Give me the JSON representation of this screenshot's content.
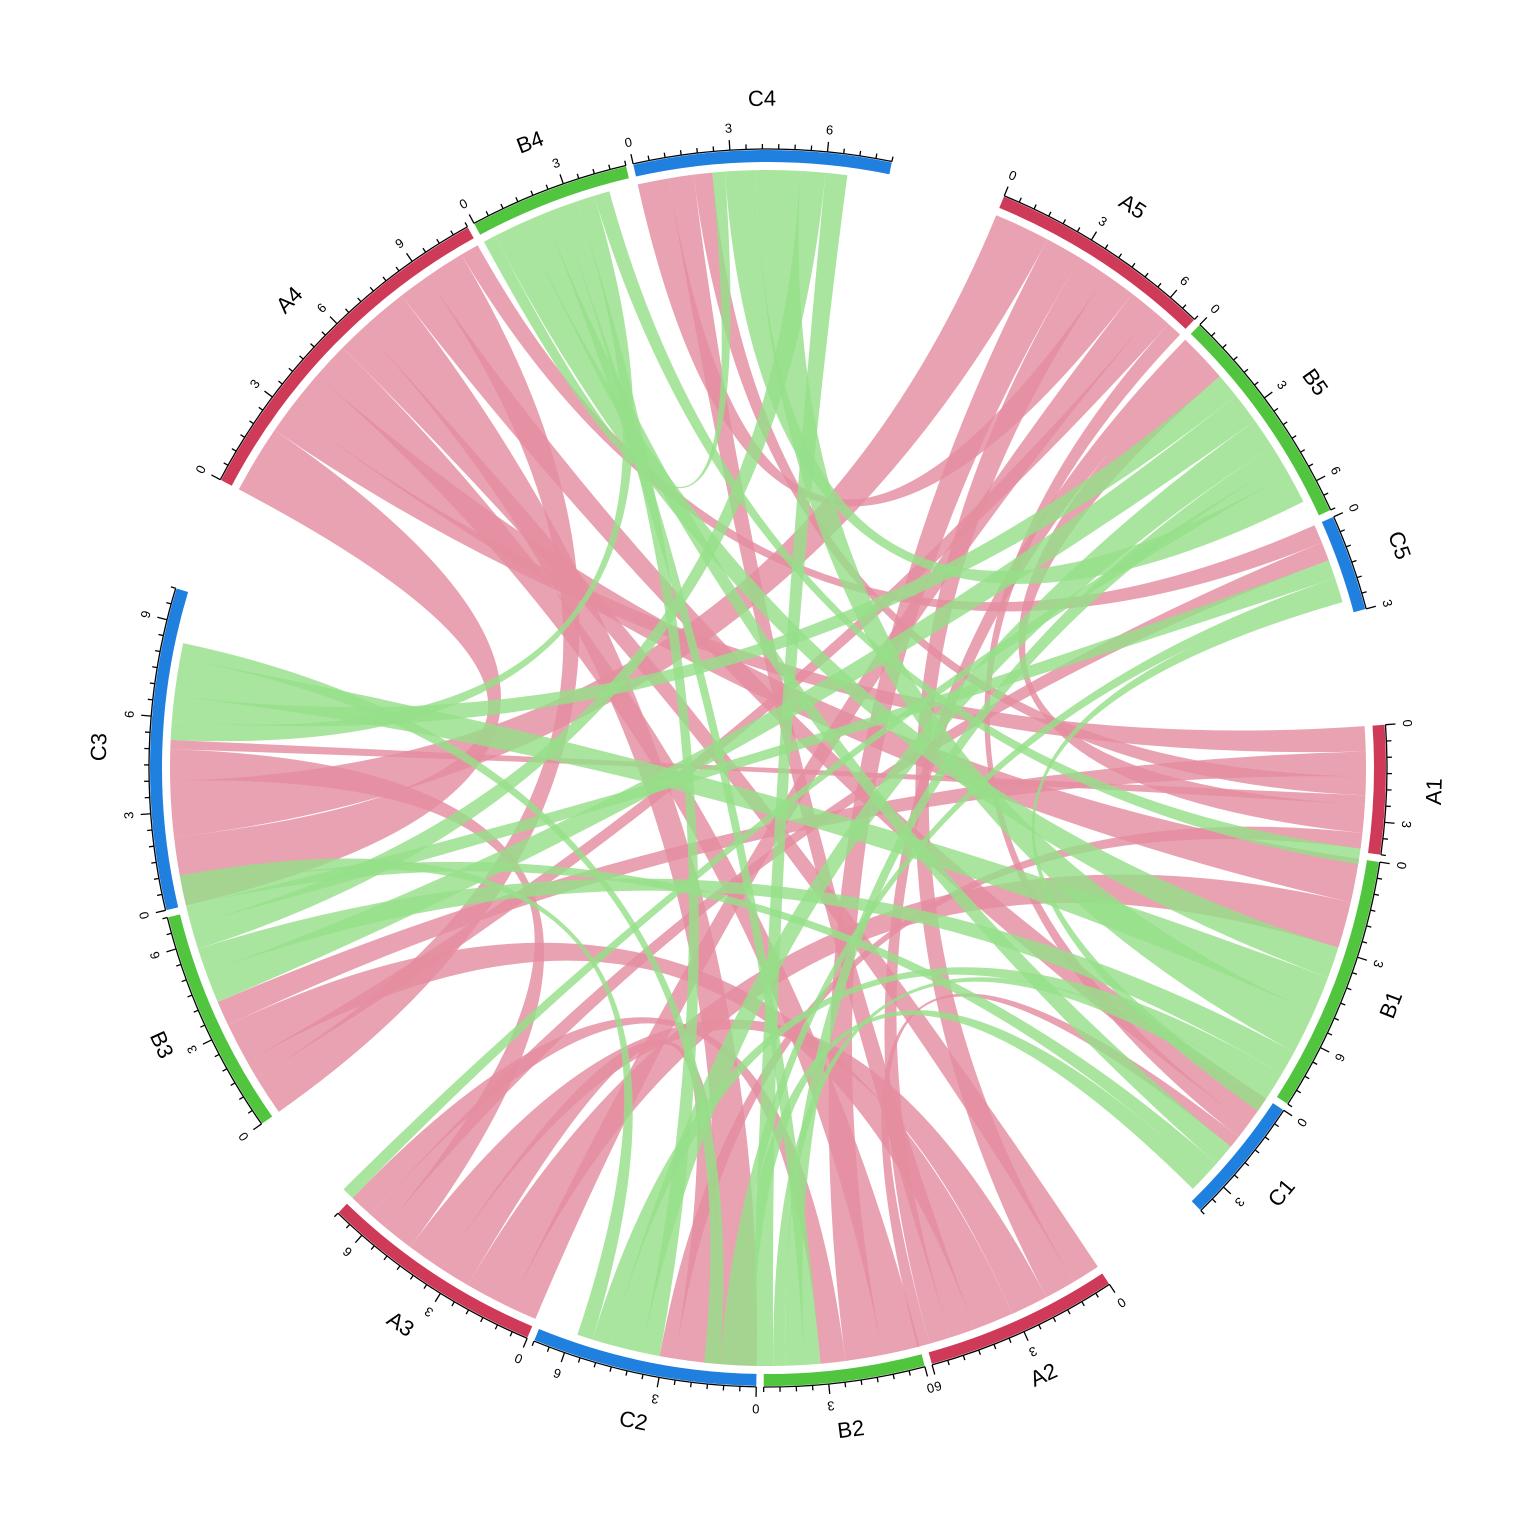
{
  "chart_data": {
    "type": "chord",
    "title": "",
    "colors": {
      "A": "#d03a59",
      "B": "#52c53f",
      "C": "#2080e0",
      "link_A": "#e48ea0",
      "link_B": "#96df8a"
    },
    "sectors": [
      {
        "name": "A1",
        "total": 4,
        "color_group": "A",
        "tick_labels": [
          "0",
          "3"
        ]
      },
      {
        "name": "B1",
        "total": 8,
        "color_group": "B",
        "tick_labels": [
          "0",
          "3",
          "6"
        ]
      },
      {
        "name": "C1",
        "total": 4,
        "color_group": "C",
        "tick_labels": [
          "0",
          "3"
        ]
      },
      {
        "name": "A2",
        "total": 6,
        "color_group": "A",
        "tick_labels": [
          "0",
          "3",
          "6"
        ]
      },
      {
        "name": "B2",
        "total": 5,
        "color_group": "B",
        "tick_labels": [
          "0",
          "3"
        ]
      },
      {
        "name": "C2",
        "total": 7,
        "color_group": "C",
        "tick_labels": [
          "0",
          "3",
          "6"
        ]
      },
      {
        "name": "A3",
        "total": 7,
        "color_group": "A",
        "tick_labels": [
          "0",
          "3",
          "6"
        ]
      },
      {
        "name": "B3",
        "total": 7,
        "color_group": "B",
        "tick_labels": [
          "0",
          "3",
          "6"
        ]
      },
      {
        "name": "C3",
        "total": 10,
        "color_group": "C",
        "tick_labels": [
          "0",
          "3",
          "6",
          "9"
        ]
      },
      {
        "name": "A4",
        "total": 11,
        "color_group": "A",
        "tick_labels": [
          "0",
          "3",
          "6",
          "9"
        ]
      },
      {
        "name": "B4",
        "total": 5,
        "color_group": "B",
        "tick_labels": [
          "0",
          "3"
        ]
      },
      {
        "name": "C4",
        "total": 8,
        "color_group": "C",
        "tick_labels": [
          "0",
          "3",
          "6"
        ]
      },
      {
        "name": "A5",
        "total": 7,
        "color_group": "A",
        "tick_labels": [
          "0",
          "3",
          "6"
        ]
      },
      {
        "name": "B5",
        "total": 7,
        "color_group": "B",
        "tick_labels": [
          "0",
          "3",
          "6"
        ]
      },
      {
        "name": "C5",
        "total": 3,
        "color_group": "C",
        "tick_labels": [
          "0",
          "3"
        ]
      }
    ],
    "links": [
      {
        "from": "A4",
        "to": "C3",
        "value": 2.2,
        "group": "A"
      },
      {
        "from": "A4",
        "to": "A1",
        "value": 0.8,
        "group": "A"
      },
      {
        "from": "A4",
        "to": "B1",
        "value": 1.4,
        "group": "A"
      },
      {
        "from": "A4",
        "to": "B2",
        "value": 1.2,
        "group": "A"
      },
      {
        "from": "A4",
        "to": "A2",
        "value": 0.9,
        "group": "A"
      },
      {
        "from": "A4",
        "to": "C2",
        "value": 1.6,
        "group": "A"
      },
      {
        "from": "A4",
        "to": "C1",
        "value": 1.0,
        "group": "A"
      },
      {
        "from": "A4",
        "to": "B3",
        "value": 1.3,
        "group": "A"
      },
      {
        "from": "A4",
        "to": "C5",
        "value": 0.6,
        "group": "A"
      },
      {
        "from": "A5",
        "to": "C3",
        "value": 1.8,
        "group": "A"
      },
      {
        "from": "A5",
        "to": "B2",
        "value": 1.2,
        "group": "A"
      },
      {
        "from": "A5",
        "to": "A2",
        "value": 1.0,
        "group": "A"
      },
      {
        "from": "A5",
        "to": "C4",
        "value": 1.0,
        "group": "A"
      },
      {
        "from": "A5",
        "to": "A3",
        "value": 0.9,
        "group": "A"
      },
      {
        "from": "A5",
        "to": "B3",
        "value": 0.6,
        "group": "A"
      },
      {
        "from": "A5",
        "to": "C1",
        "value": 0.5,
        "group": "A"
      },
      {
        "from": "A3",
        "to": "B1",
        "value": 1.5,
        "group": "A"
      },
      {
        "from": "A3",
        "to": "C2",
        "value": 1.0,
        "group": "A"
      },
      {
        "from": "A3",
        "to": "A2",
        "value": 1.2,
        "group": "A"
      },
      {
        "from": "A3",
        "to": "C3",
        "value": 1.0,
        "group": "A"
      },
      {
        "from": "A3",
        "to": "C5",
        "value": 0.6,
        "group": "A"
      },
      {
        "from": "A3",
        "to": "B2",
        "value": 0.8,
        "group": "A"
      },
      {
        "from": "A2",
        "to": "B3",
        "value": 1.3,
        "group": "A"
      },
      {
        "from": "A2",
        "to": "C4",
        "value": 0.8,
        "group": "A"
      },
      {
        "from": "A2",
        "to": "B5",
        "value": 0.7,
        "group": "A"
      },
      {
        "from": "A2",
        "to": "C1",
        "value": 0.4,
        "group": "A"
      },
      {
        "from": "A1",
        "to": "B3",
        "value": 0.8,
        "group": "A"
      },
      {
        "from": "A1",
        "to": "C4",
        "value": 0.6,
        "group": "A"
      },
      {
        "from": "A1",
        "to": "C3",
        "value": 0.3,
        "group": "A"
      },
      {
        "from": "A1",
        "to": "B5",
        "value": 0.9,
        "group": "A"
      },
      {
        "from": "A1",
        "to": "C2",
        "value": 0.5,
        "group": "A"
      },
      {
        "from": "B4",
        "to": "C4",
        "value": 0.4,
        "group": "B"
      },
      {
        "from": "B4",
        "to": "B1",
        "value": 1.0,
        "group": "B"
      },
      {
        "from": "B4",
        "to": "C1",
        "value": 0.7,
        "group": "B"
      },
      {
        "from": "B4",
        "to": "B2",
        "value": 0.5,
        "group": "B"
      },
      {
        "from": "B4",
        "to": "C2",
        "value": 0.6,
        "group": "B"
      },
      {
        "from": "B4",
        "to": "C3",
        "value": 0.6,
        "group": "B"
      },
      {
        "from": "B4",
        "to": "A1",
        "value": 0.5,
        "group": "B"
      },
      {
        "from": "B5",
        "to": "C3",
        "value": 0.8,
        "group": "B"
      },
      {
        "from": "B5",
        "to": "B3",
        "value": 1.0,
        "group": "B"
      },
      {
        "from": "B5",
        "to": "C2",
        "value": 1.0,
        "group": "B"
      },
      {
        "from": "B5",
        "to": "B2",
        "value": 0.6,
        "group": "B"
      },
      {
        "from": "B5",
        "to": "A3",
        "value": 0.4,
        "group": "B"
      },
      {
        "from": "B5",
        "to": "C4",
        "value": 1.0,
        "group": "B"
      },
      {
        "from": "B1",
        "to": "C3",
        "value": 1.2,
        "group": "B"
      },
      {
        "from": "B1",
        "to": "C4",
        "value": 1.4,
        "group": "B"
      },
      {
        "from": "B1",
        "to": "B3",
        "value": 0.8,
        "group": "B"
      },
      {
        "from": "B1",
        "to": "C2",
        "value": 0.6,
        "group": "B"
      },
      {
        "from": "B1",
        "to": "B2",
        "value": 0.4,
        "group": "B"
      },
      {
        "from": "B3",
        "to": "C4",
        "value": 0.8,
        "group": "B"
      },
      {
        "from": "B3",
        "to": "C5",
        "value": 0.6,
        "group": "B"
      },
      {
        "from": "B3",
        "to": "C1",
        "value": 0.5,
        "group": "B"
      },
      {
        "from": "B2",
        "to": "C4",
        "value": 0.7,
        "group": "B"
      },
      {
        "from": "B2",
        "to": "C1",
        "value": 0.6,
        "group": "B"
      },
      {
        "from": "B2",
        "to": "C5",
        "value": 0.4,
        "group": "B"
      },
      {
        "from": "B2",
        "to": "C3",
        "value": 0.5,
        "group": "B"
      },
      {
        "from": "B3",
        "to": "C2",
        "value": 0.5,
        "group": "B"
      },
      {
        "from": "B1",
        "to": "C5",
        "value": 0.4,
        "group": "B"
      }
    ]
  }
}
